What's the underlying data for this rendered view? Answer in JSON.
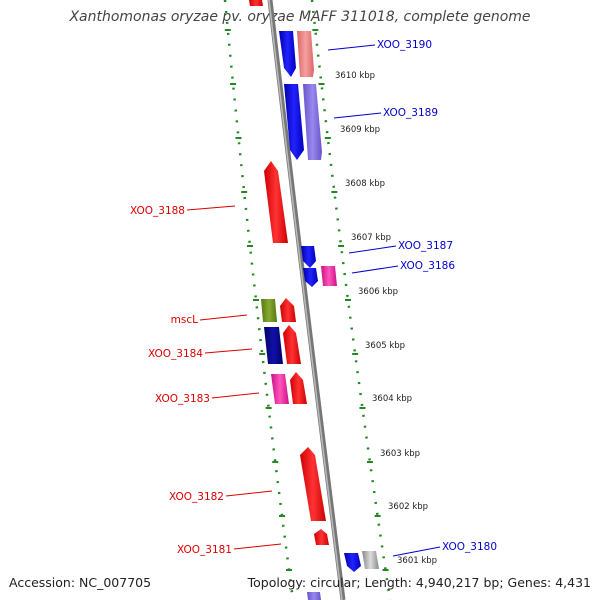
{
  "title": "Xanthomonas oryzae pv. oryzae MAFF 311018, complete genome",
  "footer": {
    "accession": "Accession: NC_007705",
    "summary": "Topology: circular; Length: 4,940,217 bp; Genes: 4,431"
  },
  "colors": {
    "forward_label": "#0000cc",
    "reverse_label": "#dd0000",
    "backbone": "#888888",
    "tick": "#228822"
  },
  "kbp_ticks": [
    "3610 kbp",
    "3609 kbp",
    "3608 kbp",
    "3607 kbp",
    "3606 kbp",
    "3605 kbp",
    "3604 kbp",
    "3603 kbp",
    "3602 kbp",
    "3601 kbp"
  ],
  "genes_forward": [
    {
      "label": "XOO_3190",
      "color": "#0000ee"
    },
    {
      "label": "XOO_3189",
      "color": "#0000ee"
    },
    {
      "label": "XOO_3187",
      "color": "#0000ee"
    },
    {
      "label": "XOO_3186",
      "color": "#0000ee"
    },
    {
      "label": "XOO_3180",
      "color": "#0000ee"
    }
  ],
  "genes_reverse": [
    {
      "label": "XOO_3188",
      "color": "#ee0000"
    },
    {
      "label": "mscL",
      "color": "#ee0000"
    },
    {
      "label": "XOO_3184",
      "color": "#ee0000"
    },
    {
      "label": "XOO_3183",
      "color": "#ee0000"
    },
    {
      "label": "XOO_3182",
      "color": "#ee0000"
    },
    {
      "label": "XOO_3181",
      "color": "#ee0000"
    }
  ]
}
